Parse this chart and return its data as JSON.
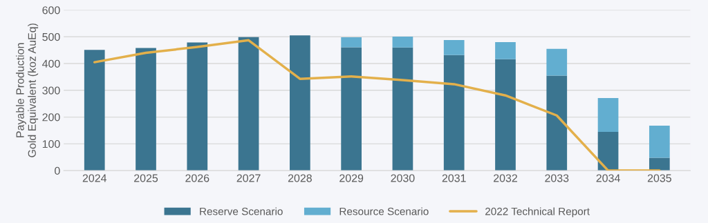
{
  "chart_data": {
    "type": "bar",
    "ylabel": "Payable Production\nGold Equivalent (koz AuEq)",
    "categories": [
      "2024",
      "2025",
      "2026",
      "2027",
      "2028",
      "2029",
      "2030",
      "2031",
      "2032",
      "2033",
      "2034",
      "2035"
    ],
    "stacked": true,
    "series": [
      {
        "name": "Reserve Scenario",
        "color": "#3b7590",
        "values": [
          451,
          458,
          479,
          499,
          505,
          461,
          460,
          432,
          416,
          355,
          145,
          48
        ]
      },
      {
        "name": "Resource Scenario",
        "color": "#62aed0",
        "values": [
          0,
          0,
          0,
          0,
          0,
          37,
          41,
          56,
          64,
          100,
          126,
          120
        ]
      },
      {
        "name": "2022 Technical Report",
        "type": "line",
        "color": "#e3b04b",
        "values": [
          405,
          440,
          462,
          487,
          343,
          352,
          338,
          323,
          281,
          206,
          0,
          0
        ]
      }
    ],
    "ylim": [
      0,
      600
    ],
    "yticks": [
      0,
      100,
      200,
      300,
      400,
      500,
      600
    ],
    "grid": "y",
    "legend": "bottom"
  }
}
